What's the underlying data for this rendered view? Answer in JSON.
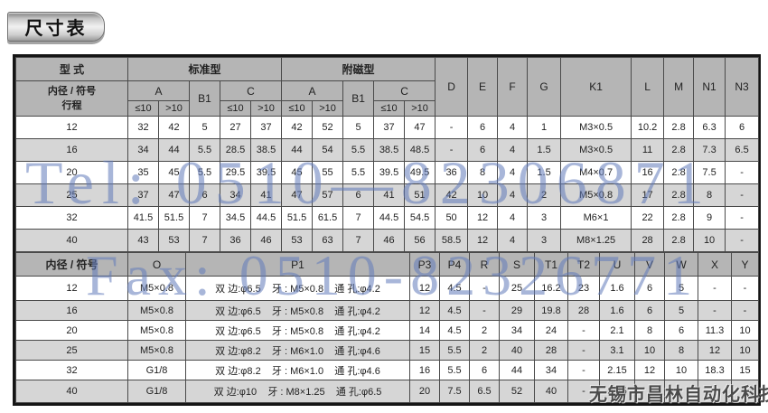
{
  "page_title": "尺寸表",
  "colors": {
    "header_bg": "#b5b5b5",
    "row_alt_bg": "#d6d6d6",
    "outer_border": "#151515",
    "watermark_blue": "#607ab9",
    "company_gray": "#4b4b4b"
  },
  "watermarks": {
    "tel": "Tel: 0510—82306871",
    "fax": "Fax: 0510-82326771",
    "company": "无锡市昌林自动化科技"
  },
  "top_table": {
    "headers": {
      "type": "型 式",
      "standard": "标准型",
      "magnetic": "附磁型",
      "bore_symbol": "内径 / 符号",
      "stroke": "行程",
      "a": "A",
      "b1": "B1",
      "c": "C",
      "le10": "≤10",
      "gt10": ">10",
      "d": "D",
      "e": "E",
      "f": "F",
      "g": "G",
      "k1": "K1",
      "l": "L",
      "m": "M",
      "n1": "N1",
      "n3": "N3"
    },
    "rows": [
      [
        "12",
        "32",
        "42",
        "5",
        "27",
        "37",
        "42",
        "52",
        "5",
        "37",
        "47",
        "-",
        "6",
        "4",
        "1",
        "M3×0.5",
        "10.2",
        "2.8",
        "6.3",
        "6"
      ],
      [
        "16",
        "34",
        "44",
        "5.5",
        "28.5",
        "38.5",
        "44",
        "54",
        "5.5",
        "38.5",
        "48.5",
        "-",
        "6",
        "4",
        "1.5",
        "M3×0.5",
        "11",
        "2.8",
        "7.3",
        "6.5"
      ],
      [
        "20",
        "35",
        "45",
        "5.5",
        "29.5",
        "39.5",
        "45",
        "55",
        "5.5",
        "39.5",
        "49.5",
        "36",
        "8",
        "4",
        "1.5",
        "M4×0.7",
        "16",
        "2.8",
        "7.5",
        "-"
      ],
      [
        "25",
        "37",
        "47",
        "6",
        "34",
        "41",
        "47",
        "57",
        "6",
        "41",
        "51",
        "42",
        "10",
        "4",
        "2",
        "M5×0.8",
        "17",
        "2.8",
        "8",
        "-"
      ],
      [
        "32",
        "41.5",
        "51.5",
        "7",
        "34.5",
        "44.5",
        "51.5",
        "61.5",
        "7",
        "44.5",
        "54.5",
        "50",
        "12",
        "4",
        "3",
        "M6×1",
        "22",
        "2.8",
        "9",
        "-"
      ],
      [
        "40",
        "43",
        "53",
        "7",
        "36",
        "46",
        "53",
        "63",
        "7",
        "46",
        "56",
        "58.5",
        "12",
        "4",
        "3",
        "M8×1.25",
        "28",
        "2.8",
        "10",
        "-"
      ]
    ]
  },
  "bottom_table": {
    "headers": [
      "内径 / 符号",
      "O",
      "P1",
      "P3",
      "P4",
      "R",
      "S",
      "T1",
      "T2",
      "U",
      "V",
      "W",
      "X",
      "Y"
    ],
    "rows": [
      [
        "12",
        "M5×0.8",
        "双 边:φ6.5    牙 : M5×0.8    通 孔:φ4.2",
        "12",
        "4.5",
        "-",
        "25",
        "16.2",
        "23",
        "1.6",
        "6",
        "5",
        "-",
        "-"
      ],
      [
        "16",
        "M5×0.8",
        "双 边:φ6.5    牙 : M5×0.8    通 孔:φ4.2",
        "12",
        "4.5",
        "-",
        "29",
        "19.8",
        "28",
        "1.6",
        "6",
        "5",
        "-",
        "-"
      ],
      [
        "20",
        "M5×0.8",
        "双 边:φ6.5    牙 : M5×0.8    通 孔:φ4.2",
        "14",
        "4.5",
        "2",
        "34",
        "24",
        "-",
        "2.1",
        "8",
        "6",
        "11.3",
        "10"
      ],
      [
        "25",
        "M5×0.8",
        "双 边:φ8.2    牙 : M6×1.0    通 孔:φ4.6",
        "15",
        "5.5",
        "2",
        "40",
        "28",
        "-",
        "3.1",
        "10",
        "8",
        "12",
        "10"
      ],
      [
        "32",
        "G1/8",
        "双 边:φ8.2    牙 : M6×1.0    通 孔:φ4.6",
        "16",
        "5.5",
        "6",
        "44",
        "34",
        "-",
        "2.15",
        "12",
        "10",
        "18.3",
        "15"
      ],
      [
        "40",
        "G1/8",
        "双 边:φ10    牙 : M8×1.25    通 孔:φ6.5",
        "20",
        "7.5",
        "6.5",
        "52",
        "40",
        "-",
        "2.25",
        "",
        "",
        "",
        ""
      ]
    ]
  }
}
